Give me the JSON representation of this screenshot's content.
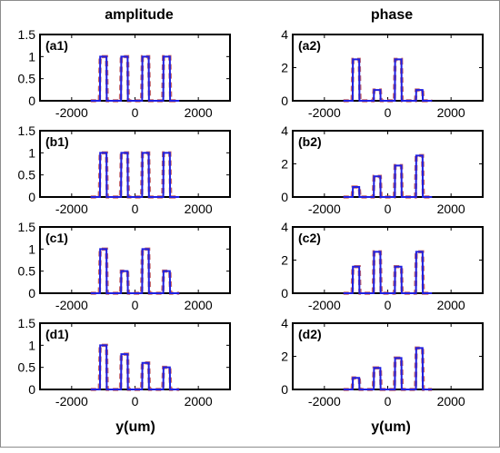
{
  "figure": {
    "col_titles": [
      "amplitude",
      "phase"
    ],
    "xlabels": [
      "y(um)",
      "y(um)"
    ]
  },
  "chart_data": [
    {
      "panel_label": "(a1)",
      "type": "line",
      "xlim": [
        -3000,
        3000
      ],
      "ylim": [
        0,
        1.5
      ],
      "xticks": [
        -2000,
        0,
        2000
      ],
      "yticks": [
        0,
        0.5,
        1,
        1.5
      ],
      "grid": false,
      "pulse_centers": [
        -1000,
        -333,
        333,
        1000
      ],
      "pulse_width": 200,
      "values": [
        1,
        1,
        1,
        1
      ]
    },
    {
      "panel_label": "(a2)",
      "type": "line",
      "xlim": [
        -3000,
        3000
      ],
      "ylim": [
        0,
        4
      ],
      "xticks": [
        -2000,
        0,
        2000
      ],
      "yticks": [
        0,
        2,
        4
      ],
      "grid": false,
      "pulse_centers": [
        -1000,
        -333,
        333,
        1000
      ],
      "pulse_width": 200,
      "values": [
        2.5,
        0.65,
        2.5,
        0.65
      ]
    },
    {
      "panel_label": "(b1)",
      "type": "line",
      "xlim": [
        -3000,
        3000
      ],
      "ylim": [
        0,
        1.5
      ],
      "xticks": [
        -2000,
        0,
        2000
      ],
      "yticks": [
        0,
        0.5,
        1,
        1.5
      ],
      "grid": false,
      "pulse_centers": [
        -1000,
        -333,
        333,
        1000
      ],
      "pulse_width": 200,
      "values": [
        1,
        1,
        1,
        1
      ]
    },
    {
      "panel_label": "(b2)",
      "type": "line",
      "xlim": [
        -3000,
        3000
      ],
      "ylim": [
        0,
        4
      ],
      "xticks": [
        -2000,
        0,
        2000
      ],
      "yticks": [
        0,
        2,
        4
      ],
      "grid": false,
      "pulse_centers": [
        -1000,
        -333,
        333,
        1000
      ],
      "pulse_width": 200,
      "values": [
        0.6,
        1.25,
        1.9,
        2.5
      ]
    },
    {
      "panel_label": "(c1)",
      "type": "line",
      "xlim": [
        -3000,
        3000
      ],
      "ylim": [
        0,
        1.5
      ],
      "xticks": [
        -2000,
        0,
        2000
      ],
      "yticks": [
        0,
        0.5,
        1,
        1.5
      ],
      "grid": false,
      "pulse_centers": [
        -1000,
        -333,
        333,
        1000
      ],
      "pulse_width": 200,
      "values": [
        1,
        0.5,
        1,
        0.5
      ]
    },
    {
      "panel_label": "(c2)",
      "type": "line",
      "xlim": [
        -3000,
        3000
      ],
      "ylim": [
        0,
        4
      ],
      "xticks": [
        -2000,
        0,
        2000
      ],
      "yticks": [
        0,
        2,
        4
      ],
      "grid": false,
      "pulse_centers": [
        -1000,
        -333,
        333,
        1000
      ],
      "pulse_width": 200,
      "values": [
        1.6,
        2.5,
        1.6,
        2.5
      ]
    },
    {
      "panel_label": "(d1)",
      "type": "line",
      "xlim": [
        -3000,
        3000
      ],
      "ylim": [
        0,
        1.5
      ],
      "xticks": [
        -2000,
        0,
        2000
      ],
      "yticks": [
        0,
        0.5,
        1,
        1.5
      ],
      "grid": false,
      "pulse_centers": [
        -1000,
        -333,
        333,
        1000
      ],
      "pulse_width": 200,
      "values": [
        1,
        0.8,
        0.6,
        0.5
      ]
    },
    {
      "panel_label": "(d2)",
      "type": "line",
      "xlim": [
        -3000,
        3000
      ],
      "ylim": [
        0,
        4
      ],
      "xticks": [
        -2000,
        0,
        2000
      ],
      "yticks": [
        0,
        2,
        4
      ],
      "grid": false,
      "pulse_centers": [
        -1000,
        -333,
        333,
        1000
      ],
      "pulse_width": 200,
      "values": [
        0.7,
        1.3,
        1.9,
        2.5
      ]
    }
  ],
  "colors": {
    "line_blue": "#1f1fe0",
    "line_red_dashed": "#c0504d",
    "axes": "#000000"
  }
}
